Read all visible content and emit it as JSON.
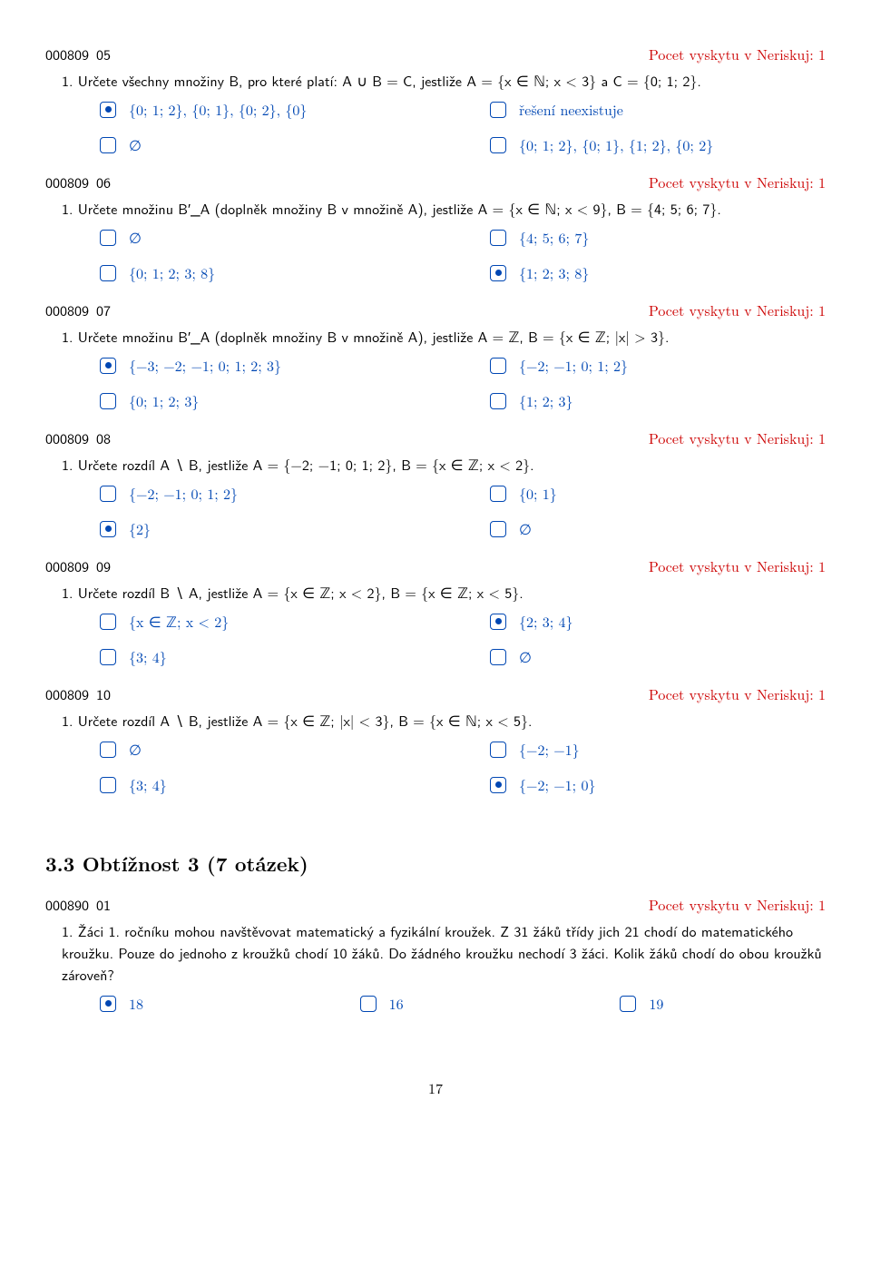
{
  "colors": {
    "accent": "#cc0000",
    "box": "#0047b3",
    "text": "#000000",
    "bg": "#ffffff"
  },
  "questions": [
    {
      "id": "000809_05",
      "count": "Pocet vyskytu v Neriskuj: 1",
      "text": "1. Určete všechny množiny B, pro které platí: A ∪ B = C, jestliže A = {x ∈ ℕ; x < 3} a C = {0; 1; 2}.",
      "cols": 2,
      "opts": [
        {
          "t": "{0; 1; 2}, {0; 1}, {0; 2}, {0}",
          "c": true
        },
        {
          "t": "řešení neexistuje",
          "c": false
        },
        {
          "t": "∅",
          "c": false
        },
        {
          "t": "{0; 1; 2}, {0; 1}, {1; 2}, {0; 2}",
          "c": false
        }
      ]
    },
    {
      "id": "000809_06",
      "count": "Pocet vyskytu v Neriskuj: 1",
      "text": "1. Určete množinu B′_A (doplněk množiny B v množině A), jestliže A = {x ∈ ℕ; x < 9}, B = {4; 5; 6; 7}.",
      "cols": 2,
      "opts": [
        {
          "t": "∅",
          "c": false
        },
        {
          "t": "{4; 5; 6; 7}",
          "c": false
        },
        {
          "t": "{0; 1; 2; 3; 8}",
          "c": false
        },
        {
          "t": "{1; 2; 3; 8}",
          "c": true
        }
      ]
    },
    {
      "id": "000809_07",
      "count": "Pocet vyskytu v Neriskuj: 1",
      "text": "1. Určete množinu B′_A (doplněk množiny B v množině A), jestliže A = ℤ, B = {x ∈ ℤ; |x| > 3}.",
      "cols": 2,
      "opts": [
        {
          "t": "{−3; −2; −1; 0; 1; 2; 3}",
          "c": true
        },
        {
          "t": "{−2; −1; 0; 1; 2}",
          "c": false
        },
        {
          "t": "{0; 1; 2; 3}",
          "c": false
        },
        {
          "t": "{1; 2; 3}",
          "c": false
        }
      ]
    },
    {
      "id": "000809_08",
      "count": "Pocet vyskytu v Neriskuj: 1",
      "text": "1. Určete rozdíl A ∖ B, jestliže A = {−2; −1; 0; 1; 2}, B = {x ∈ ℤ; x < 2}.",
      "cols": 2,
      "opts": [
        {
          "t": "{−2; −1; 0; 1; 2}",
          "c": false
        },
        {
          "t": "{0; 1}",
          "c": false
        },
        {
          "t": "{2}",
          "c": true
        },
        {
          "t": "∅",
          "c": false
        }
      ]
    },
    {
      "id": "000809_09",
      "count": "Pocet vyskytu v Neriskuj: 1",
      "text": "1. Určete rozdíl B ∖ A, jestliže A = {x ∈ ℤ; x < 2}, B = {x ∈ ℤ; x < 5}.",
      "cols": 2,
      "opts": [
        {
          "t": "{x ∈ ℤ; x < 2}",
          "c": false
        },
        {
          "t": "{2; 3; 4}",
          "c": true
        },
        {
          "t": "{3; 4}",
          "c": false
        },
        {
          "t": "∅",
          "c": false
        }
      ]
    },
    {
      "id": "000809_10",
      "count": "Pocet vyskytu v Neriskuj: 1",
      "text": "1. Určete rozdíl A ∖ B, jestliže A = {x ∈ ℤ; |x| < 3}, B = {x ∈ ℕ; x < 5}.",
      "cols": 2,
      "opts": [
        {
          "t": "∅",
          "c": false
        },
        {
          "t": "{−2; −1}",
          "c": false
        },
        {
          "t": "{3; 4}",
          "c": false
        },
        {
          "t": "{−2; −1; 0}",
          "c": true
        }
      ]
    }
  ],
  "section": "3.3   Obtížnost 3 (7 otázek)",
  "questions2": [
    {
      "id": "000890_01",
      "count": "Pocet vyskytu v Neriskuj: 1",
      "text": "1. Žáci 1. ročníku mohou navštěvovat matematický a fyzikální kroužek. Z 31 žáků třídy jich 21 chodí do matematického kroužku. Pouze do jednoho z kroužků chodí 10 žáků. Do žádného kroužku nechodí 3 žáci. Kolik žáků chodí do obou kroužků zároveň?",
      "cols": 3,
      "opts": [
        {
          "t": "18",
          "c": true
        },
        {
          "t": "16",
          "c": false
        },
        {
          "t": "19",
          "c": false
        }
      ]
    }
  ],
  "pagenum": "17"
}
